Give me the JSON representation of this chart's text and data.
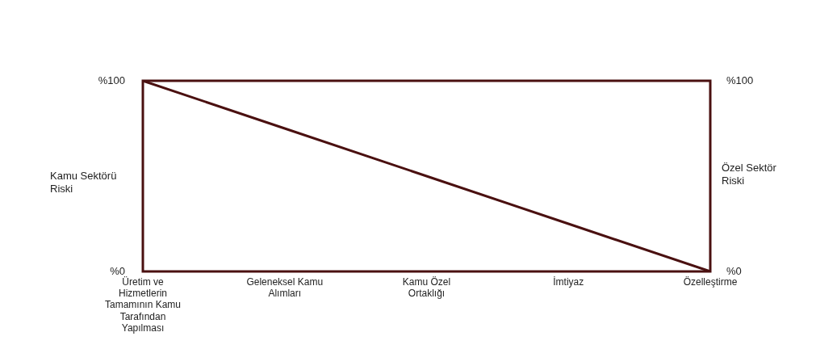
{
  "chart_data": {
    "type": "line",
    "categories": [
      "Üretim ve Hizmetlerin Tamamının Kamu Tarafından Yapılması",
      "Geleneksel Kamu Alımları",
      "Kamu Özel Ortaklığı",
      "İmtiyaz",
      "Özelleştirme"
    ],
    "series": [
      {
        "color": "#4a1010",
        "values": [
          100,
          75,
          50,
          25,
          0
        ]
      }
    ],
    "ylabel": "Kamu Sektörü Riski",
    "y2label": "Özel Sektör Riski",
    "ylim": [
      0,
      100
    ],
    "yticks": [
      {
        "value": 0,
        "label": "%0"
      },
      {
        "value": 100,
        "label": "%100"
      }
    ],
    "y2lim": [
      0,
      100
    ],
    "y2ticks": [
      {
        "value": 0,
        "label": "%0"
      },
      {
        "value": 100,
        "label": "%100"
      }
    ],
    "grid": false,
    "legend": false,
    "marker": "none",
    "line_style": "solid"
  }
}
